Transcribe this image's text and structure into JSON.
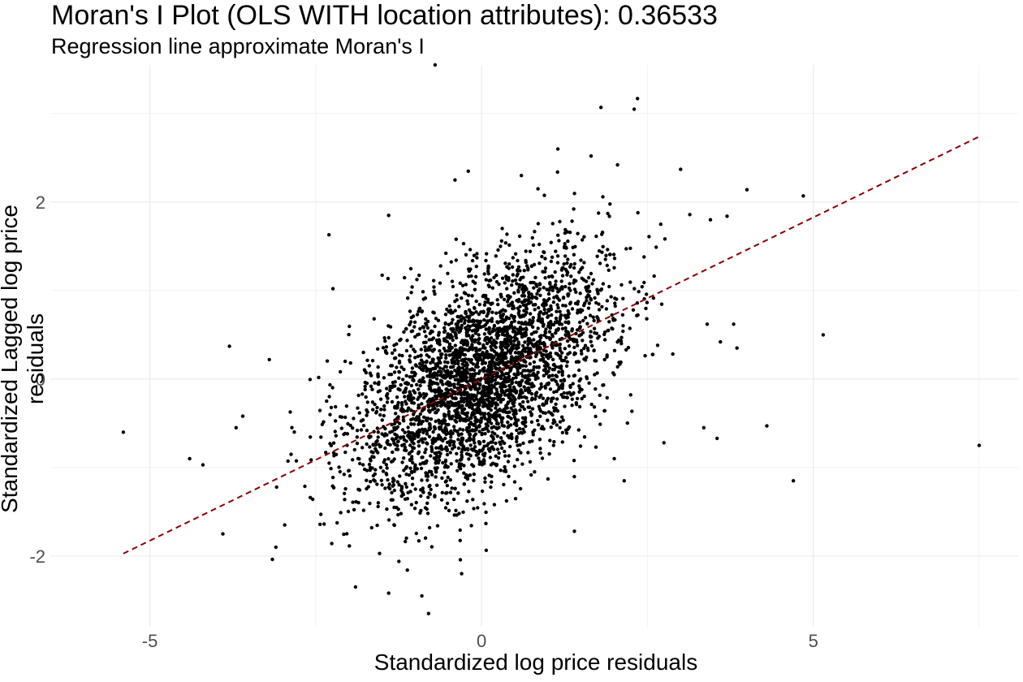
{
  "chart_data": {
    "type": "scatter",
    "title": "Moran's I Plot (OLS WITH location attributes): 0.36533",
    "subtitle": "Regression line approximate Moran's I",
    "xlabel": "Standardized log price residuals",
    "ylabel": "Standardized Lagged log price residuals",
    "xlim": [
      -6.5,
      8.1
    ],
    "ylim": [
      -2.8,
      3.55
    ],
    "x_ticks": [
      -5,
      0,
      5
    ],
    "x_tick_labels": [
      "-5",
      "0",
      "5"
    ],
    "y_ticks": [
      -2,
      0,
      2
    ],
    "y_tick_labels": [
      "-2",
      "0",
      "2"
    ],
    "grid": true,
    "regression_line": {
      "slope": 0.36533,
      "intercept": 0,
      "x_range": [
        -5.4,
        7.5
      ],
      "color": "#8b0000",
      "style": "dashed"
    },
    "point_color": "#000000",
    "highlighted_points": [
      {
        "x": -5.4,
        "y": -0.6
      },
      {
        "x": -4.4,
        "y": -0.9
      },
      {
        "x": -4.2,
        "y": -0.97
      },
      {
        "x": -3.9,
        "y": -1.75
      },
      {
        "x": -3.8,
        "y": 0.37
      },
      {
        "x": -3.6,
        "y": -0.42
      },
      {
        "x": -3.7,
        "y": -0.55
      },
      {
        "x": -3.1,
        "y": -1.9
      },
      {
        "x": -3.2,
        "y": 0.22
      },
      {
        "x": -2.3,
        "y": 1.63
      },
      {
        "x": -1.4,
        "y": 1.85
      },
      {
        "x": -0.7,
        "y": 3.55
      },
      {
        "x": -0.4,
        "y": 2.25
      },
      {
        "x": -0.2,
        "y": 2.35
      },
      {
        "x": 1.15,
        "y": 2.6
      },
      {
        "x": 1.8,
        "y": 3.07
      },
      {
        "x": 2.3,
        "y": 3.05
      },
      {
        "x": 2.35,
        "y": 3.17
      },
      {
        "x": 2.05,
        "y": 2.42
      },
      {
        "x": 3.0,
        "y": 2.37
      },
      {
        "x": 4.0,
        "y": 2.14
      },
      {
        "x": 3.7,
        "y": 1.84
      },
      {
        "x": 3.45,
        "y": 1.8
      },
      {
        "x": 4.85,
        "y": 2.07
      },
      {
        "x": 2.7,
        "y": 1.75
      },
      {
        "x": 3.4,
        "y": 0.62
      },
      {
        "x": 3.6,
        "y": 0.42
      },
      {
        "x": 3.85,
        "y": 0.35
      },
      {
        "x": 3.8,
        "y": 0.62
      },
      {
        "x": 5.15,
        "y": 0.5
      },
      {
        "x": 3.35,
        "y": -0.55
      },
      {
        "x": 3.55,
        "y": -0.67
      },
      {
        "x": 4.3,
        "y": -0.53
      },
      {
        "x": 4.7,
        "y": -1.15
      },
      {
        "x": 7.5,
        "y": -0.75
      },
      {
        "x": 2.75,
        "y": -0.72
      },
      {
        "x": -0.8,
        "y": -2.65
      },
      {
        "x": -0.3,
        "y": -2.2
      },
      {
        "x": -0.9,
        "y": -2.45
      },
      {
        "x": -1.4,
        "y": -2.42
      },
      {
        "x": -1.9,
        "y": -2.35
      },
      {
        "x": 1.4,
        "y": -1.72
      },
      {
        "x": 2.15,
        "y": -1.15
      },
      {
        "x": 2.0,
        "y": -0.9
      },
      {
        "x": 2.45,
        "y": 1.38
      },
      {
        "x": 1.65,
        "y": 2.52
      },
      {
        "x": 0.6,
        "y": 2.3
      },
      {
        "x": 0.85,
        "y": 2.15
      }
    ]
  }
}
